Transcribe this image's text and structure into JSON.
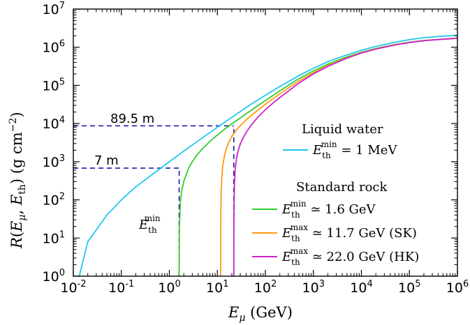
{
  "chart_data": {
    "type": "line",
    "title": "",
    "xlabel": {
      "main": "E",
      "sub": "μ",
      "unit": " (GeV)"
    },
    "ylabel": "R(E_μ, E_th) (g cm^-2)",
    "xscale": "log",
    "yscale": "log",
    "xlim": [
      0.01,
      1000000
    ],
    "ylim": [
      1,
      10000000
    ],
    "x_tick_exponents": [
      "-2",
      "-1",
      "0",
      "1",
      "2",
      "3",
      "4",
      "5",
      "6"
    ],
    "y_tick_exponents": [
      "0",
      "1",
      "2",
      "3",
      "4",
      "5",
      "6",
      "7"
    ],
    "tick_base": "10",
    "grid": false,
    "legend_position": "center-right",
    "legend": {
      "groups": [
        {
          "title": "Liquid water",
          "entries": [
            {
              "series": 0,
              "text": " = 1 MeV"
            }
          ]
        },
        {
          "title": "Standard rock",
          "entries": [
            {
              "series": 1,
              "text": " ≃ 1.6 GeV"
            },
            {
              "series": 2,
              "text": " ≃ 11.7 GeV (SK)"
            },
            {
              "series": 3,
              "text": " ≃ 22.0 GeV (HK)"
            }
          ]
        }
      ]
    },
    "series": [
      {
        "sym": "E",
        "sub": "th",
        "sup": "min",
        "color": "#1ec8f0",
        "x": [
          0.0133,
          0.02,
          0.05,
          0.1,
          0.2,
          0.5,
          1,
          1.6,
          2,
          5,
          10,
          20,
          50,
          100,
          200,
          500,
          1000,
          2000,
          5000,
          10000,
          20000,
          50000,
          100000,
          200000,
          500000,
          1000000
        ],
        "y": [
          1,
          8,
          40,
          100,
          220,
          520,
          1000,
          1550,
          1900,
          4300,
          8000,
          14500,
          32000,
          55000,
          94000,
          180000,
          280000,
          420000,
          630000,
          830000,
          1050000,
          1350000,
          1580000,
          1780000,
          1950000,
          2050000
        ]
      },
      {
        "sym": "E",
        "sub": "th",
        "sup": "min",
        "color": "#33cc33",
        "x": [
          1.6,
          1.62,
          1.7,
          1.8,
          2,
          2.5,
          3,
          4,
          5,
          7,
          10,
          15,
          20,
          30,
          50,
          100,
          200,
          500,
          1000,
          2000,
          5000,
          10000,
          20000,
          50000,
          100000,
          200000,
          500000,
          1000000
        ],
        "y": [
          1,
          20,
          90,
          165,
          310,
          660,
          1000,
          1650,
          2250,
          3400,
          5000,
          7500,
          9800,
          14000,
          22000,
          40000,
          72000,
          150000,
          240000,
          360000,
          560000,
          740000,
          930000,
          1180000,
          1350000,
          1500000,
          1640000,
          1730000
        ]
      },
      {
        "sym": "E",
        "sub": "th",
        "sup": "max",
        "color": "#ff9910",
        "x": [
          11.7,
          11.8,
          12,
          12.5,
          13,
          14,
          15,
          17,
          20,
          25,
          30,
          40,
          50,
          70,
          100,
          200,
          500,
          1000,
          2000,
          5000,
          10000,
          20000,
          50000,
          100000,
          200000,
          500000,
          1000000
        ],
        "y": [
          1,
          50,
          170,
          470,
          800,
          1400,
          2000,
          3100,
          4600,
          6800,
          8800,
          12500,
          16000,
          22500,
          32000,
          60000,
          130000,
          215000,
          330000,
          530000,
          720000,
          910000,
          1160000,
          1340000,
          1490000,
          1630000,
          1720000
        ]
      },
      {
        "sym": "E",
        "sub": "th",
        "sup": "max",
        "color": "#cc22cc",
        "x": [
          22,
          22.1,
          22.3,
          22.7,
          23.5,
          25,
          27,
          30,
          35,
          40,
          50,
          70,
          100,
          150,
          200,
          500,
          1000,
          2000,
          5000,
          10000,
          20000,
          50000,
          100000,
          200000,
          500000,
          1000000
        ],
        "y": [
          1,
          25,
          90,
          280,
          640,
          1200,
          1900,
          2900,
          4400,
          5900,
          8900,
          14800,
          23000,
          36000,
          48000,
          115000,
          200000,
          315000,
          515000,
          705000,
          895000,
          1145000,
          1330000,
          1480000,
          1620000,
          1710000
        ]
      }
    ],
    "annotations": [
      {
        "text": "89.5 m",
        "x": 1.6,
        "y": 9000
      },
      {
        "text": "7 m",
        "x": 0.1,
        "y": 700
      }
    ],
    "threshold_label": {
      "sym": "E",
      "sub": "th",
      "sup": "min"
    },
    "dashed_guides": [
      {
        "y": 680,
        "x_end": 1.6,
        "color": "#1a1aaa"
      },
      {
        "y": 8700,
        "x_end": 22,
        "color": "#1a1aaa"
      },
      {
        "x": 1.6,
        "y_end": 680,
        "color": "#1a1aaa"
      },
      {
        "x": 22,
        "y_end": 8700,
        "color": "#1a1aaa"
      }
    ]
  }
}
